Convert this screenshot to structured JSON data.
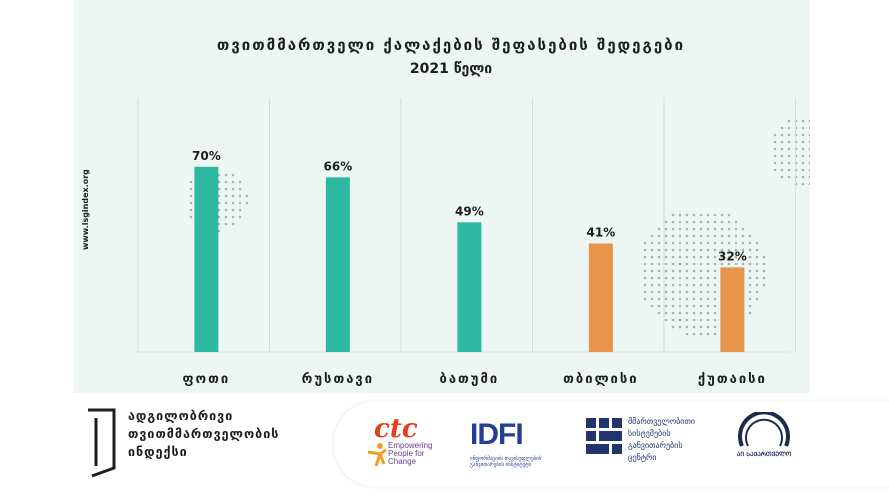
{
  "chart_data": {
    "type": "bar",
    "title_lines": [
      "თვითმმართველი ქალაქების შეფასების შედეგები",
      "2021 წელი"
    ],
    "categories": [
      "ფოთი",
      "რუსთავი",
      "ბათუმი",
      "თბილისი",
      "ქუთაისი"
    ],
    "values": [
      70,
      66,
      49,
      41,
      32
    ],
    "value_labels": [
      "70%",
      "66%",
      "49%",
      "41%",
      "32%"
    ],
    "bar_colors": [
      "#2db8a2",
      "#2db8a2",
      "#2db8a2",
      "#e8954d",
      "#e8954d"
    ],
    "ylim": [
      0,
      100
    ],
    "grid": "vertical separators",
    "legend": "none"
  },
  "side_text": "www.lsgindex.org",
  "footer": {
    "org_lines": [
      "ადგილობრივი",
      "თვითმმართველობის",
      "ინდექსი"
    ],
    "partners": {
      "ctc_name": "ctc",
      "ctc_tagline": "Empowering People for Change",
      "idfi_name": "IDFI",
      "idfi_tagline": "ინფორმაციის თავისუფლების განვითარების ინსტიტუტი",
      "msc_text": "მმართველობითი\nსისტემების\nგანვითარების\nცენტრი",
      "ai_text": "ᲐᲘ ᲡᲐᲥᲐᲠᲗᲕᲔᲚᲝ"
    }
  },
  "colors": {
    "teal": "#2db8a2",
    "orange": "#e8954d",
    "background": "#eef6f3"
  }
}
